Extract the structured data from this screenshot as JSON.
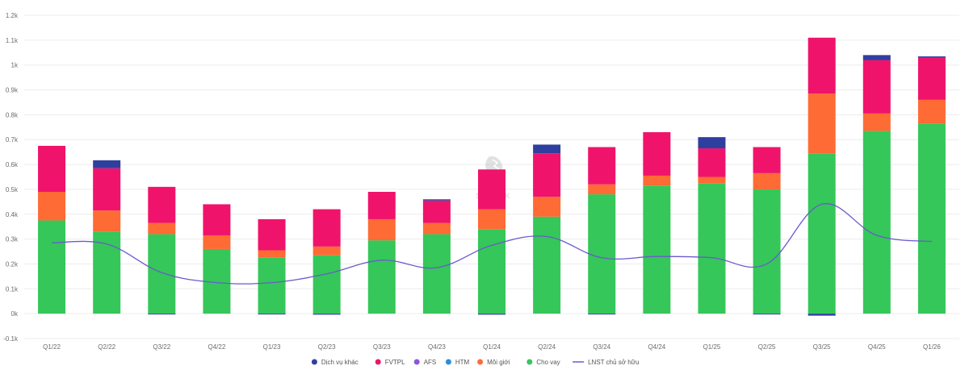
{
  "watermark_text": "SSTOCK",
  "chart_data": {
    "type": "bar",
    "stacked": true,
    "categories": [
      "Q1/22",
      "Q2/22",
      "Q3/22",
      "Q4/22",
      "Q1/23",
      "Q2/23",
      "Q3/23",
      "Q4/23",
      "Q1/24",
      "Q2/24",
      "Q3/24",
      "Q4/24",
      "Q1/25",
      "Q2/25",
      "Q3/25",
      "Q4/25",
      "Q1/26"
    ],
    "y_ticks": [
      "-0.1k",
      "0k",
      "0.1k",
      "0.2k",
      "0.3k",
      "0.4k",
      "0.5k",
      "0.6k",
      "0.7k",
      "0.8k",
      "0.9k",
      "1k",
      "1.1k",
      "1.2k"
    ],
    "ylim": [
      -0.1,
      1.2
    ],
    "grid": true,
    "legend_position": "bottom",
    "series": [
      {
        "name": "Cho vay",
        "color": "#35c759",
        "values": [
          0.375,
          0.33,
          0.32,
          0.26,
          0.225,
          0.235,
          0.295,
          0.32,
          0.34,
          0.39,
          0.48,
          0.515,
          0.525,
          0.5,
          0.645,
          0.735,
          0.765
        ]
      },
      {
        "name": "Môi giới",
        "color": "#ff6b35",
        "values": [
          0.115,
          0.085,
          0.045,
          0.055,
          0.03,
          0.035,
          0.085,
          0.045,
          0.08,
          0.08,
          0.04,
          0.04,
          0.025,
          0.065,
          0.24,
          0.07,
          0.095
        ]
      },
      {
        "name": "HTM",
        "color": "#2b8fd6",
        "values": [
          0,
          0,
          0,
          0,
          0,
          0,
          0,
          0,
          0,
          0,
          0,
          0,
          0,
          0,
          0,
          0,
          0
        ]
      },
      {
        "name": "AFS",
        "color": "#8a55e0",
        "values": [
          0,
          0,
          0,
          0,
          0,
          0,
          0,
          0,
          0,
          0,
          0,
          0,
          0,
          0,
          0,
          0,
          0
        ]
      },
      {
        "name": "FVTPL",
        "color": "#f0136b",
        "values": [
          0.185,
          0.17,
          0.145,
          0.125,
          0.125,
          0.15,
          0.11,
          0.09,
          0.16,
          0.175,
          0.15,
          0.175,
          0.115,
          0.105,
          0.225,
          0.215,
          0.17
        ]
      },
      {
        "name": "Dịch vụ khác",
        "color": "#2f3fa0",
        "values": [
          0,
          0.032,
          -0.003,
          0,
          -0.002,
          -0.004,
          0,
          0.005,
          -0.004,
          0.035,
          -0.002,
          0,
          0.045,
          -0.003,
          -0.008,
          0.02,
          0.005
        ]
      }
    ],
    "line_series": {
      "name": "LNST chủ sở hữu",
      "color": "#6a5acd",
      "values": [
        0.285,
        0.28,
        0.165,
        0.125,
        0.125,
        0.16,
        0.215,
        0.185,
        0.275,
        0.31,
        0.225,
        0.23,
        0.225,
        0.2,
        0.44,
        0.315,
        0.29
      ]
    },
    "legend": [
      {
        "name": "Dịch vụ khác",
        "color": "#2f3fa0",
        "kind": "dot"
      },
      {
        "name": "FVTPL",
        "color": "#f0136b",
        "kind": "dot"
      },
      {
        "name": "AFS",
        "color": "#8a55e0",
        "kind": "dot"
      },
      {
        "name": "HTM",
        "color": "#2b8fd6",
        "kind": "dot"
      },
      {
        "name": "Môi giới",
        "color": "#ff6b35",
        "kind": "dot"
      },
      {
        "name": "Cho vay",
        "color": "#35c759",
        "kind": "dot"
      },
      {
        "name": "LNST chủ sở hữu",
        "color": "#6a5acd",
        "kind": "line"
      }
    ]
  }
}
